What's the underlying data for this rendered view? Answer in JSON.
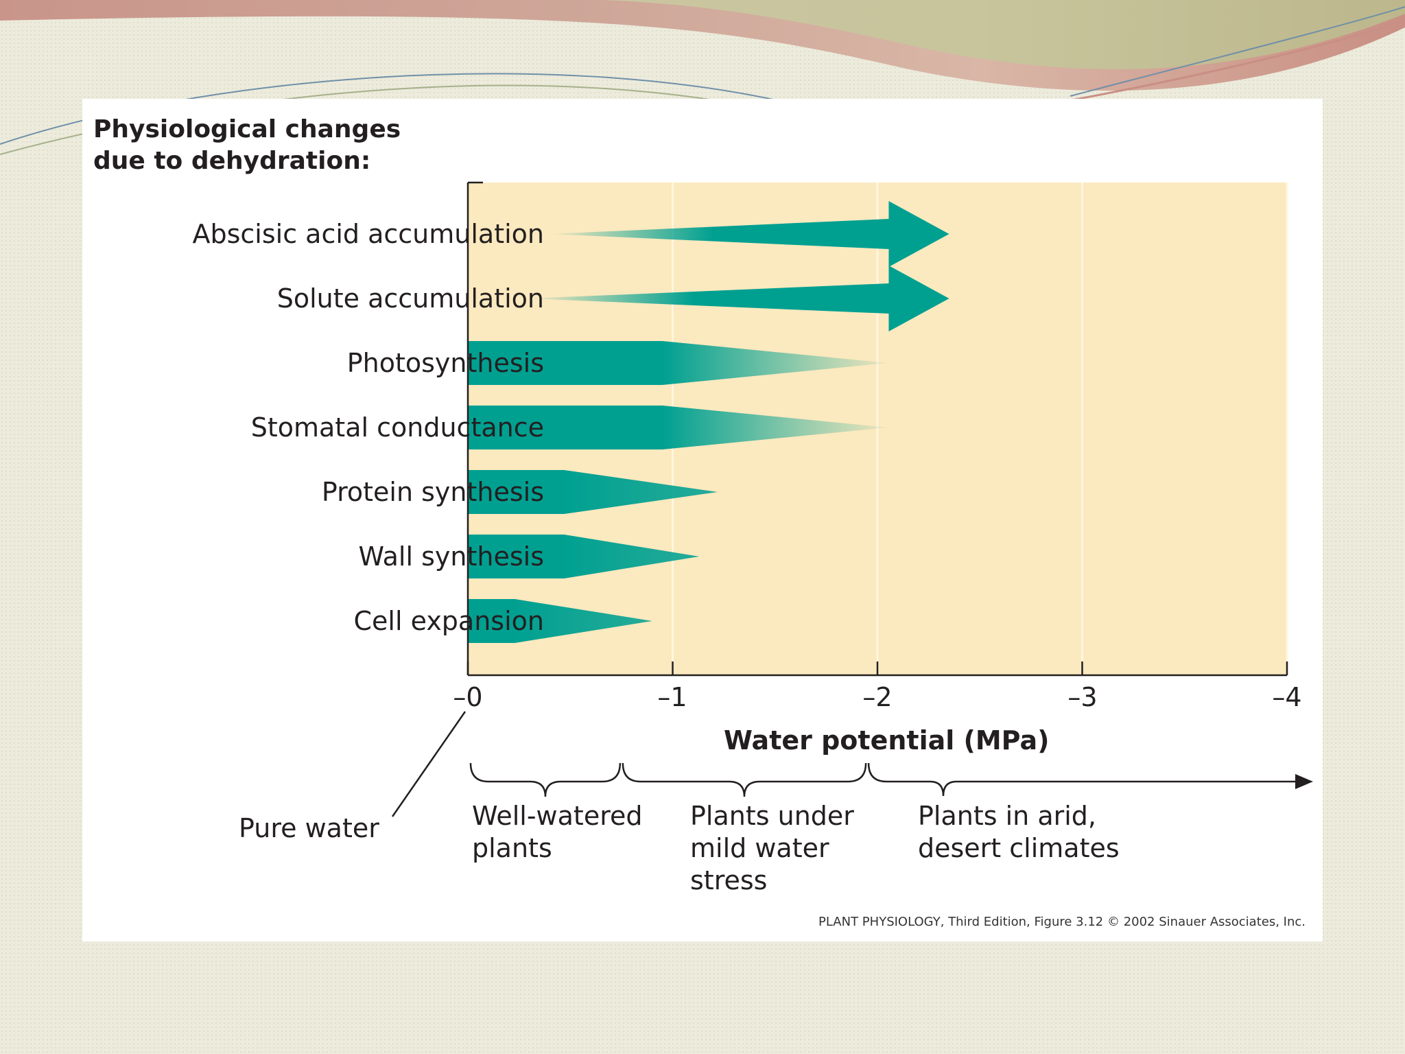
{
  "title": "Physiological changes due to dehydration:",
  "title_lines": [
    "Physiological changes",
    "due to dehydration:"
  ],
  "axis_title": "Water potential (MPa)",
  "ticks": [
    {
      "value": 0,
      "label": "–0"
    },
    {
      "value": -1,
      "label": "–1"
    },
    {
      "value": -2,
      "label": "–2"
    },
    {
      "value": -3,
      "label": "–3"
    },
    {
      "value": -4,
      "label": "–4"
    }
  ],
  "processes": [
    {
      "label": "Abscisic acid accumulation",
      "kind": "increase",
      "fade_start": -0.4,
      "solid_from": -1.2,
      "arrow_tip": -2.35
    },
    {
      "label": "Solute accumulation",
      "kind": "increase",
      "fade_start": -0.3,
      "solid_from": -1.1,
      "arrow_tip": -2.35
    },
    {
      "label": "Photosynthesis",
      "kind": "decrease",
      "full_until": -0.95,
      "fade_end": -2.05
    },
    {
      "label": "Stomatal conductance",
      "kind": "decrease",
      "full_until": -0.95,
      "fade_end": -2.05
    },
    {
      "label": "Protein synthesis",
      "kind": "decrease",
      "full_until": -0.47,
      "fade_end": -1.22
    },
    {
      "label": "Wall synthesis",
      "kind": "decrease",
      "full_until": -0.47,
      "fade_end": -1.13
    },
    {
      "label": "Cell expansion",
      "kind": "decrease",
      "full_until": -0.23,
      "fade_end": -0.9
    }
  ],
  "zones": [
    {
      "name": "pure-water",
      "label": "Pure water",
      "from": 0,
      "to": 0
    },
    {
      "name": "well-watered",
      "label": "Well-watered plants",
      "from": 0,
      "to": -0.75
    },
    {
      "name": "mild-stress",
      "label": "Plants under mild water stress",
      "from": -0.75,
      "to": -1.95
    },
    {
      "name": "arid",
      "label": "Plants in arid, desert climates",
      "from": -1.95,
      "to": -4
    }
  ],
  "credit": "PLANT PHYSIOLOGY, Third Edition, Figure 3.12  © 2002 Sinauer Associates, Inc.",
  "colors": {
    "plot_bg": "#fbe9bf",
    "bar": "#00a091",
    "text": "#231f20",
    "page_bg": "#ecebdc",
    "swoosh_red": "#c98b83",
    "swoosh_green": "#c4c99a"
  }
}
